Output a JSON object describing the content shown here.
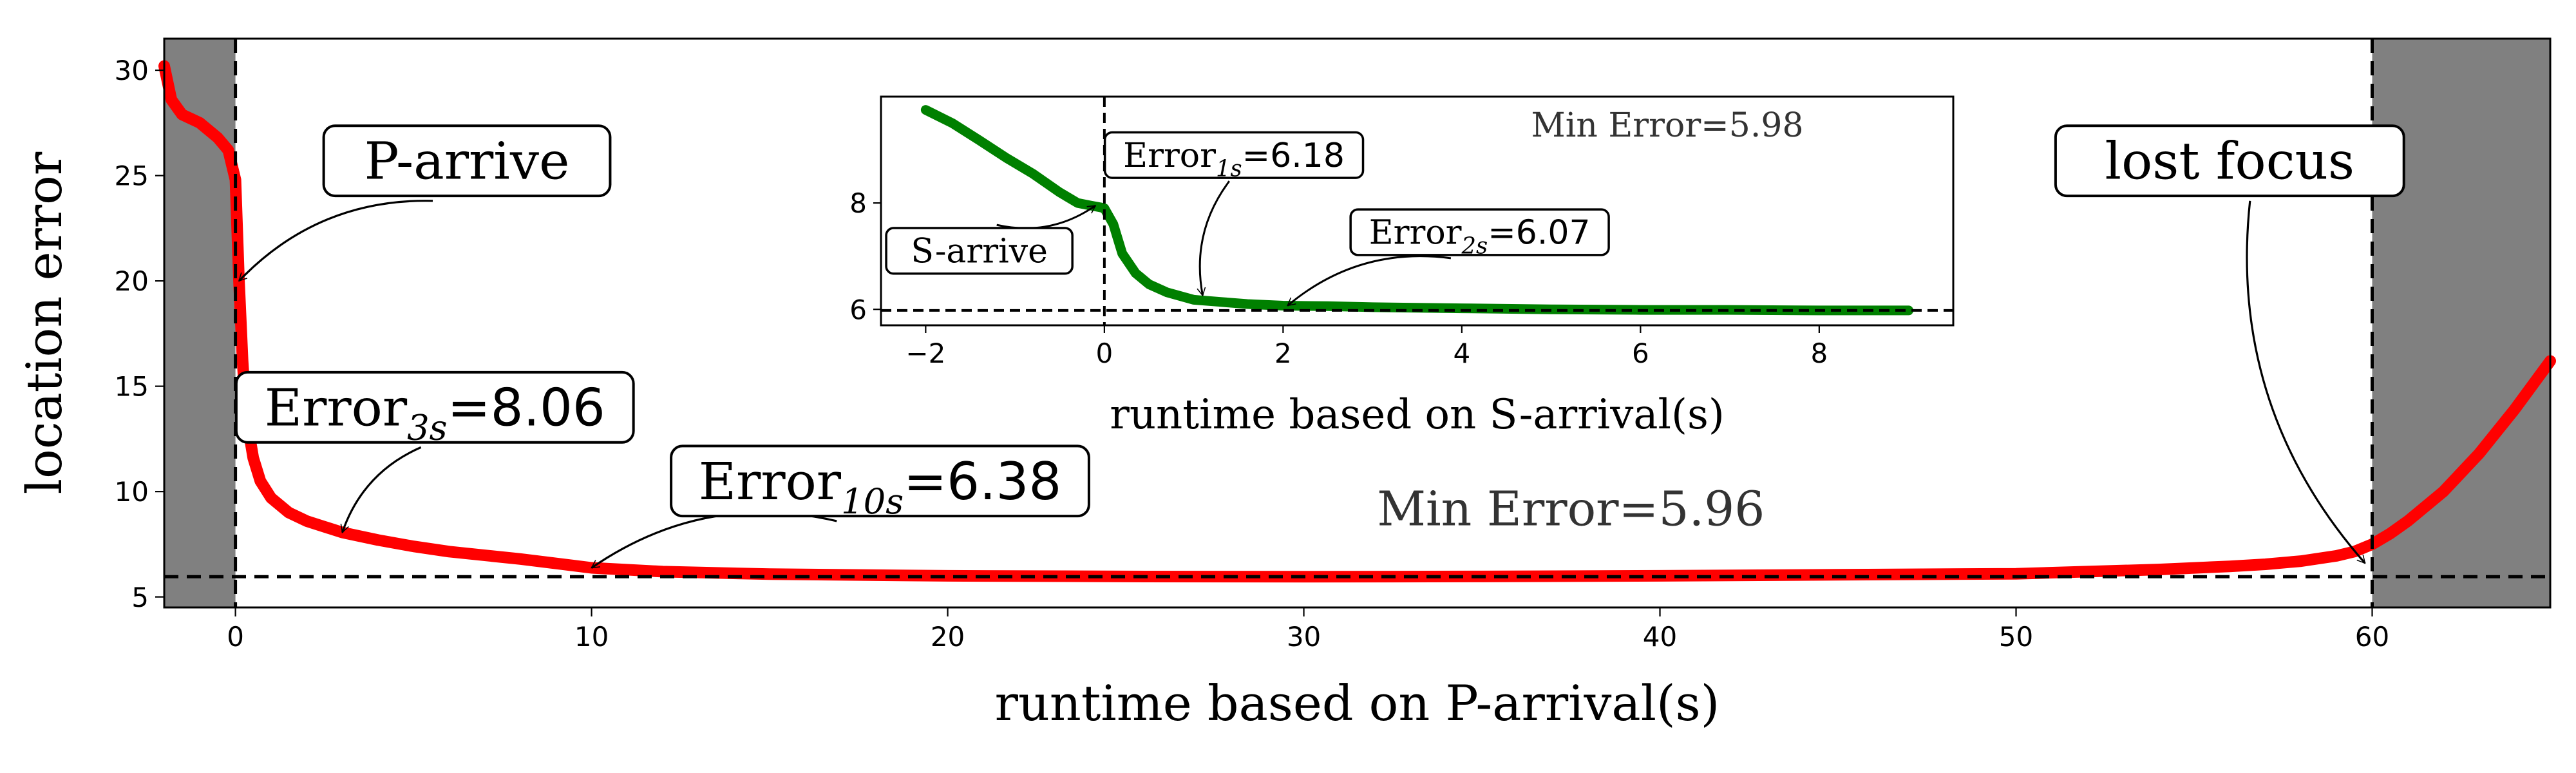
{
  "chart_data": [
    {
      "type": "line",
      "title": "",
      "xlabel": "runtime based on P-arrival(s)",
      "ylabel": "location error",
      "xlim": [
        -2,
        65
      ],
      "ylim": [
        4.5,
        31.5
      ],
      "xticks": [
        0,
        10,
        20,
        30,
        40,
        50,
        60
      ],
      "yticks": [
        5,
        10,
        15,
        20,
        25,
        30
      ],
      "grid": false,
      "legend": "none",
      "series": [
        {
          "color": "#ff0000",
          "x": [
            -2,
            -1.8,
            -1.5,
            -1,
            -0.5,
            -0.2,
            0,
            0.1,
            0.2,
            0.3,
            0.5,
            0.7,
            1,
            1.5,
            2,
            3,
            4,
            5,
            6,
            8,
            10,
            12,
            15,
            20,
            25,
            30,
            35,
            40,
            45,
            50,
            52,
            54,
            56,
            57,
            58,
            59,
            59.5,
            60,
            60.5,
            61,
            62,
            63,
            64,
            65
          ],
          "y": [
            30.2,
            28.6,
            27.9,
            27.5,
            26.8,
            26.2,
            24.8,
            20.0,
            16.2,
            13.6,
            11.6,
            10.5,
            9.7,
            9.0,
            8.6,
            8.06,
            7.7,
            7.4,
            7.15,
            6.8,
            6.38,
            6.2,
            6.08,
            6.0,
            5.97,
            5.96,
            5.97,
            6.0,
            6.05,
            6.1,
            6.2,
            6.3,
            6.45,
            6.55,
            6.7,
            6.95,
            7.15,
            7.5,
            8.0,
            8.6,
            10.0,
            11.8,
            13.9,
            16.2
          ]
        }
      ],
      "reference_lines": {
        "hline": 5.96,
        "vlines": [
          0,
          60
        ]
      },
      "shaded_regions": [
        [
          -2,
          0
        ],
        [
          60,
          65
        ]
      ],
      "shade_color": "#808080",
      "annotations": [
        {
          "kind": "plain",
          "text": "P-arrive",
          "target": [
            0.1,
            20
          ],
          "text_at": [
            6.5,
            25.7
          ]
        },
        {
          "kind": "sub",
          "base": "Error",
          "sub": "3s",
          "value": "=8.06",
          "target": [
            3,
            8.06
          ],
          "text_at": [
            5.6,
            14.0
          ]
        },
        {
          "kind": "sub",
          "base": "Error",
          "sub": "10s",
          "value": "=6.38",
          "target": [
            10,
            6.38
          ],
          "text_at": [
            18.1,
            10.5
          ]
        },
        {
          "kind": "plain",
          "text": "lost focus",
          "target": [
            59.8,
            6.6
          ],
          "text_at": [
            56.0,
            25.7
          ]
        }
      ],
      "note": "Min Error=5.96",
      "note_at": [
        37.5,
        8.4
      ],
      "note_color": "#333333"
    },
    {
      "type": "line",
      "title": "",
      "xlabel": "runtime based on S-arrival(s)",
      "ylabel": "",
      "xlim": [
        -2.5,
        9.5
      ],
      "ylim": [
        5.7,
        10.0
      ],
      "xticks": [
        -2,
        0,
        2,
        4,
        6,
        8
      ],
      "xtick_labels": [
        "−2",
        "0",
        "2",
        "4",
        "6",
        "8"
      ],
      "yticks": [
        6,
        8
      ],
      "grid": false,
      "legend": "none",
      "series": [
        {
          "color": "#008000",
          "x": [
            -2,
            -1.7,
            -1.4,
            -1.1,
            -0.8,
            -0.5,
            -0.3,
            -0.15,
            -0.05,
            0,
            0.1,
            0.2,
            0.35,
            0.5,
            0.7,
            1,
            1.3,
            1.6,
            2,
            2.5,
            3,
            4,
            5,
            6,
            7,
            8,
            9
          ],
          "y": [
            9.75,
            9.5,
            9.18,
            8.85,
            8.55,
            8.2,
            8.0,
            7.95,
            7.92,
            7.9,
            7.6,
            7.05,
            6.68,
            6.47,
            6.32,
            6.18,
            6.14,
            6.1,
            6.07,
            6.06,
            6.04,
            6.02,
            6.0,
            5.99,
            5.99,
            5.98,
            5.98
          ]
        }
      ],
      "reference_lines": {
        "hline": 5.98,
        "vlines": [
          0
        ]
      },
      "annotations": [
        {
          "kind": "plain",
          "text": "S-arrive",
          "target": [
            -0.1,
            7.95
          ],
          "text_at": [
            -1.4,
            7.1
          ]
        },
        {
          "kind": "sub",
          "base": "Error",
          "sub": "1s",
          "value": "=6.18",
          "target": [
            1.1,
            6.26
          ],
          "text_at": [
            1.45,
            8.9
          ]
        },
        {
          "kind": "sub",
          "base": "Error",
          "sub": "2s",
          "value": "=6.07",
          "target": [
            2.05,
            6.07
          ],
          "text_at": [
            4.2,
            7.45
          ]
        }
      ],
      "note": "Min Error=5.98",
      "note_at": [
        6.3,
        9.25
      ],
      "note_color": "#333333"
    }
  ]
}
